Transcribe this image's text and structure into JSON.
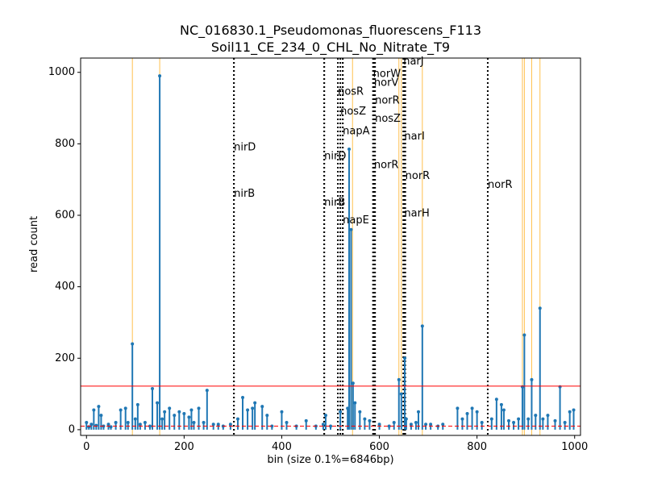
{
  "chart_data": {
    "type": "stem",
    "title": [
      "NC_016830.1_Pseudomonas_fluorescens_F113",
      "Soil11_CE_234_0_CHL_No_Nitrate_T9"
    ],
    "xlabel": "bin (size 0.1%=6846bp)",
    "ylabel": "read count",
    "xlim": [
      -12,
      1012
    ],
    "ylim": [
      -16,
      1040
    ],
    "xticks": [
      0,
      200,
      400,
      600,
      800,
      1000
    ],
    "yticks": [
      0,
      200,
      400,
      600,
      800,
      1000
    ],
    "series": [
      {
        "color": "#1f77b4",
        "x": [
          0,
          5,
          10,
          15,
          20,
          25,
          30,
          35,
          45,
          50,
          60,
          70,
          80,
          85,
          94,
          100,
          105,
          110,
          120,
          130,
          135,
          145,
          150,
          155,
          160,
          170,
          180,
          190,
          200,
          210,
          215,
          220,
          230,
          240,
          247,
          260,
          270,
          280,
          295,
          310,
          320,
          330,
          340,
          345,
          360,
          370,
          380,
          400,
          410,
          430,
          450,
          470,
          485,
          490,
          500,
          520,
          535,
          538,
          542,
          546,
          550,
          560,
          570,
          580,
          600,
          620,
          630,
          640,
          645,
          652,
          655,
          665,
          675,
          680,
          688,
          695,
          705,
          720,
          730,
          760,
          770,
          780,
          790,
          800,
          810,
          830,
          840,
          850,
          855,
          865,
          875,
          885,
          893,
          897,
          905,
          912,
          920,
          929,
          935,
          945,
          960,
          970,
          980,
          990,
          998
        ],
        "values": [
          20,
          8,
          15,
          55,
          12,
          65,
          40,
          10,
          15,
          8,
          20,
          55,
          60,
          20,
          240,
          30,
          70,
          15,
          20,
          10,
          115,
          75,
          990,
          30,
          50,
          60,
          40,
          50,
          45,
          35,
          55,
          20,
          60,
          20,
          110,
          15,
          15,
          10,
          15,
          30,
          90,
          55,
          60,
          75,
          65,
          40,
          10,
          50,
          20,
          10,
          25,
          10,
          15,
          40,
          10,
          50,
          60,
          785,
          560,
          130,
          75,
          50,
          30,
          25,
          15,
          10,
          20,
          140,
          100,
          200,
          30,
          15,
          20,
          50,
          290,
          15,
          15,
          10,
          15,
          60,
          30,
          45,
          60,
          50,
          20,
          30,
          85,
          70,
          55,
          25,
          20,
          30,
          120,
          265,
          30,
          140,
          40,
          340,
          30,
          40,
          25,
          120,
          20,
          50,
          55
        ]
      }
    ],
    "hlines": [
      {
        "value": 122,
        "color": "#ff0000",
        "style": "solid"
      },
      {
        "value": 10,
        "color": "#ff0000",
        "style": "dashed"
      }
    ],
    "highlight_x": {
      "color": "#ffc04d",
      "values": [
        94,
        150,
        545,
        640,
        645,
        688,
        893,
        897,
        912,
        929
      ]
    },
    "genes": [
      {
        "x": 302,
        "label": "nirD",
        "y": 790
      },
      {
        "x": 302,
        "label": "nirB",
        "y": 660
      },
      {
        "x": 487,
        "label": "nirD",
        "y": 765
      },
      {
        "x": 487,
        "label": "nirB",
        "y": 635
      },
      {
        "x": 515,
        "label": "nosR",
        "y": 945
      },
      {
        "x": 520,
        "label": "nosZ",
        "y": 890
      },
      {
        "x": 525,
        "label": "napA",
        "y": 835
      },
      {
        "x": 525,
        "label": "napE",
        "y": 585
      },
      {
        "x": 587,
        "label": "norW",
        "y": 995
      },
      {
        "x": 589,
        "label": "norV",
        "y": 970
      },
      {
        "x": 591,
        "label": "norR",
        "y": 920
      },
      {
        "x": 591,
        "label": "nosZ",
        "y": 870
      },
      {
        "x": 589,
        "label": "norR",
        "y": 740
      },
      {
        "x": 649,
        "label": "narJ",
        "y": 1030
      },
      {
        "x": 651,
        "label": "narI",
        "y": 820
      },
      {
        "x": 653,
        "label": "norR",
        "y": 710
      },
      {
        "x": 651,
        "label": "narH",
        "y": 605
      },
      {
        "x": 822,
        "label": "norR",
        "y": 685
      }
    ]
  }
}
